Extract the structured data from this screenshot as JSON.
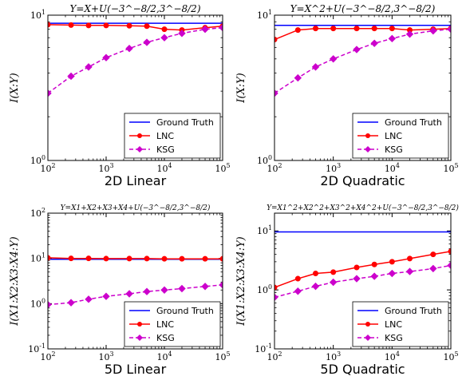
{
  "chart_data": [
    {
      "type": "line",
      "panel_label": "2D Linear",
      "formula": "Y=X+U(−3^−8/2,3^−8/2)",
      "ylabel": "I(X:Y)",
      "xscale": "log",
      "yscale": "log",
      "xlim": [
        100,
        100000
      ],
      "ylim": [
        1,
        10
      ],
      "x_ticks": [
        "10^2",
        "10^3",
        "10^4",
        "10^5"
      ],
      "y_ticks": [
        "10^0",
        "10^1"
      ],
      "legend": [
        "Ground Truth",
        "LNC",
        "KSG"
      ],
      "legend_position": "lower-right",
      "x": [
        100,
        250,
        500,
        1000,
        2500,
        5000,
        10000,
        20000,
        50000,
        100000
      ],
      "series": [
        {
          "name": "Ground Truth",
          "color": "#0000ff",
          "style": "solid",
          "marker": "none",
          "values": [
            8.8,
            8.8,
            8.8,
            8.8,
            8.8,
            8.8,
            8.8,
            8.8,
            8.8,
            8.8
          ]
        },
        {
          "name": "LNC",
          "color": "#ff0000",
          "style": "solid",
          "marker": "circle",
          "values": [
            8.6,
            8.55,
            8.5,
            8.5,
            8.45,
            8.4,
            8.0,
            7.9,
            8.2,
            8.4
          ]
        },
        {
          "name": "KSG",
          "color": "#cc00cc",
          "style": "dashed",
          "marker": "diamond",
          "values": [
            2.9,
            3.8,
            4.4,
            5.1,
            5.9,
            6.5,
            7.0,
            7.5,
            8.0,
            8.2
          ]
        }
      ]
    },
    {
      "type": "line",
      "panel_label": "2D Quadratic",
      "formula": "Y=X^2+U(−3^−8/2,3^−8/2)",
      "ylabel": "I(X:Y)",
      "xscale": "log",
      "yscale": "log",
      "xlim": [
        100,
        100000
      ],
      "ylim": [
        1,
        10
      ],
      "x_ticks": [
        "10^2",
        "10^3",
        "10^4",
        "10^5"
      ],
      "y_ticks": [
        "10^0",
        "10^1"
      ],
      "legend": [
        "Ground Truth",
        "LNC",
        "KSG"
      ],
      "legend_position": "lower-right",
      "x": [
        100,
        250,
        500,
        1000,
        2500,
        5000,
        10000,
        20000,
        50000,
        100000
      ],
      "series": [
        {
          "name": "Ground Truth",
          "color": "#0000ff",
          "style": "solid",
          "marker": "none",
          "values": [
            8.5,
            8.5,
            8.5,
            8.5,
            8.5,
            8.5,
            8.5,
            8.5,
            8.5,
            8.5
          ]
        },
        {
          "name": "LNC",
          "color": "#ff0000",
          "style": "solid",
          "marker": "circle",
          "values": [
            6.8,
            7.9,
            8.1,
            8.1,
            8.1,
            8.1,
            8.1,
            7.9,
            8.0,
            8.1
          ]
        },
        {
          "name": "KSG",
          "color": "#cc00cc",
          "style": "dashed",
          "marker": "diamond",
          "values": [
            2.9,
            3.7,
            4.4,
            5.0,
            5.8,
            6.4,
            6.9,
            7.4,
            7.8,
            8.0
          ]
        }
      ]
    },
    {
      "type": "line",
      "panel_label": "5D Linear",
      "formula": "Y=X1+X2+X3+X4+U(−3^−8/2,3^−8/2)",
      "ylabel": "I(X1:X2:X3:X4:Y)",
      "xscale": "log",
      "yscale": "log",
      "xlim": [
        100,
        100000
      ],
      "ylim": [
        0.1,
        100
      ],
      "x_ticks": [
        "10^2",
        "10^3",
        "10^4",
        "10^5"
      ],
      "y_ticks": [
        "10^-1",
        "10^0",
        "10^1",
        "10^2"
      ],
      "legend": [
        "Ground Truth",
        "LNC",
        "KSG"
      ],
      "legend_position": "lower-right",
      "x": [
        100,
        250,
        500,
        1000,
        2500,
        5000,
        10000,
        20000,
        50000,
        100000
      ],
      "series": [
        {
          "name": "Ground Truth",
          "color": "#0000ff",
          "style": "solid",
          "marker": "none",
          "values": [
            9.6,
            9.6,
            9.6,
            9.6,
            9.6,
            9.6,
            9.6,
            9.6,
            9.6,
            9.6
          ]
        },
        {
          "name": "LNC",
          "color": "#ff0000",
          "style": "solid",
          "marker": "circle",
          "values": [
            10.3,
            10.0,
            10.0,
            9.9,
            9.9,
            9.9,
            9.8,
            9.8,
            9.8,
            9.8
          ]
        },
        {
          "name": "KSG",
          "color": "#cc00cc",
          "style": "dashed",
          "marker": "diamond",
          "values": [
            0.95,
            1.05,
            1.25,
            1.45,
            1.65,
            1.85,
            2.0,
            2.15,
            2.4,
            2.6
          ]
        }
      ]
    },
    {
      "type": "line",
      "panel_label": "5D Quadratic",
      "formula": "Y=X1^2+X2^2+X3^2+X4^2+U(−3^−8/2,3^−8/2)",
      "ylabel": "I(X1:X2:X3:X4:Y)",
      "xscale": "log",
      "yscale": "log",
      "xlim": [
        100,
        100000
      ],
      "ylim": [
        0.1,
        20
      ],
      "x_ticks": [
        "10^2",
        "10^3",
        "10^4",
        "10^5"
      ],
      "y_ticks": [
        "10^-1",
        "10^0",
        "10^1"
      ],
      "legend": [
        "Ground Truth",
        "LNC",
        "KSG"
      ],
      "legend_position": "lower-right",
      "x": [
        100,
        250,
        500,
        1000,
        2500,
        5000,
        10000,
        20000,
        50000,
        100000
      ],
      "series": [
        {
          "name": "Ground Truth",
          "color": "#0000ff",
          "style": "solid",
          "marker": "none",
          "values": [
            9.6,
            9.6,
            9.6,
            9.6,
            9.6,
            9.6,
            9.6,
            9.6,
            9.6,
            9.6
          ]
        },
        {
          "name": "LNC",
          "color": "#ff0000",
          "style": "solid",
          "marker": "circle",
          "values": [
            1.1,
            1.55,
            1.9,
            2.0,
            2.4,
            2.7,
            3.0,
            3.4,
            4.0,
            4.5
          ]
        },
        {
          "name": "KSG",
          "color": "#cc00cc",
          "style": "dashed",
          "marker": "diamond",
          "values": [
            0.75,
            0.95,
            1.15,
            1.35,
            1.55,
            1.7,
            1.9,
            2.05,
            2.3,
            2.6
          ]
        }
      ]
    }
  ]
}
